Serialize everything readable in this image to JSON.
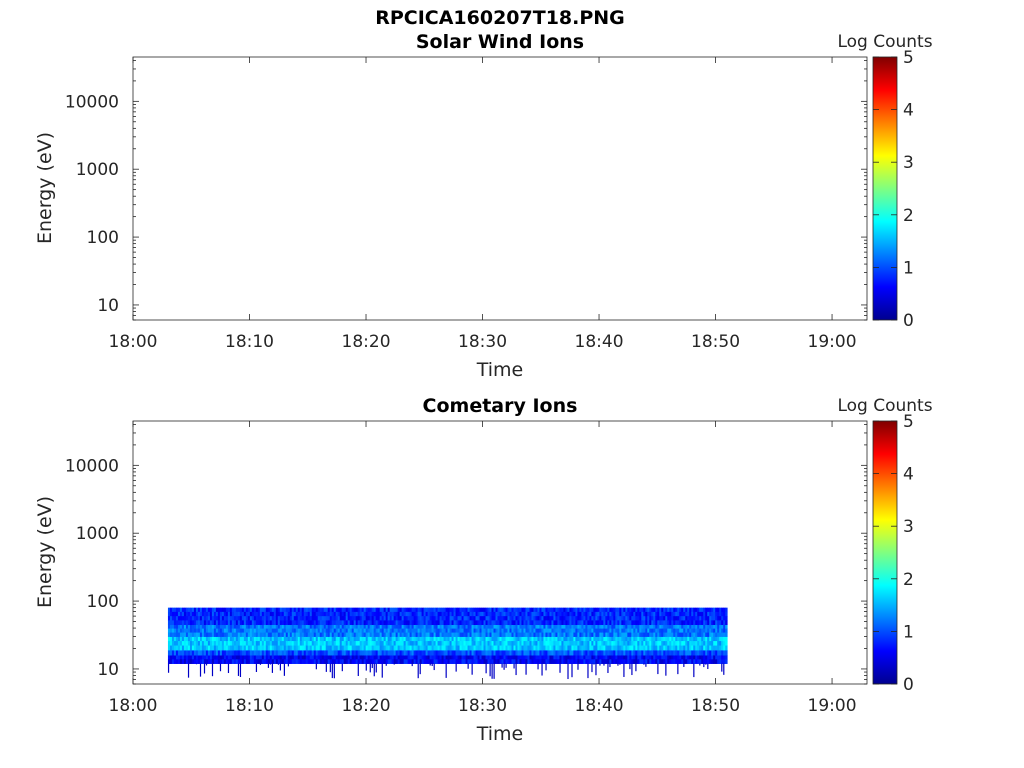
{
  "figure": {
    "title": "RPCICA160207T18.PNG",
    "colormap": [
      "#00008f",
      "#0000ff",
      "#0080ff",
      "#00ffff",
      "#80ff80",
      "#ffff00",
      "#ff8000",
      "#ff0000",
      "#800000"
    ]
  },
  "chart_data": [
    {
      "type": "heatmap",
      "title": "Solar Wind Ions",
      "xlabel": "Time",
      "ylabel": "Energy (eV)",
      "yscale": "log",
      "xlim": [
        "18:00",
        "19:03"
      ],
      "ylim": [
        6,
        45000
      ],
      "xticks": [
        "18:00",
        "18:10",
        "18:20",
        "18:30",
        "18:40",
        "18:50",
        "19:00"
      ],
      "yticks": [
        "10",
        "100",
        "1000",
        "10000"
      ],
      "colorbar": {
        "label": "Log Counts",
        "range": [
          0,
          5
        ],
        "ticks": [
          "0",
          "1",
          "2",
          "3",
          "4",
          "5"
        ]
      },
      "data": []
    },
    {
      "type": "heatmap",
      "title": "Cometary Ions",
      "xlabel": "Time",
      "ylabel": "Energy (eV)",
      "yscale": "log",
      "xlim": [
        "18:00",
        "19:03"
      ],
      "ylim": [
        6,
        45000
      ],
      "xticks": [
        "18:00",
        "18:10",
        "18:20",
        "18:30",
        "18:40",
        "18:50",
        "19:00"
      ],
      "yticks": [
        "10",
        "100",
        "1000",
        "10000"
      ],
      "colorbar": {
        "label": "Log Counts",
        "range": [
          0,
          5
        ],
        "ticks": [
          "0",
          "1",
          "2",
          "3",
          "4",
          "5"
        ]
      },
      "data": {
        "time_start": "18:03",
        "time_end": "18:51",
        "energy_min": 12,
        "energy_max": 80,
        "energy_bands": [
          {
            "energy": [
              12,
              16
            ],
            "log_counts": 0.6
          },
          {
            "energy": [
              16,
              19
            ],
            "log_counts": 1.0
          },
          {
            "energy": [
              19,
              30
            ],
            "log_counts": 1.6
          },
          {
            "energy": [
              30,
              45
            ],
            "log_counts": 1.2
          },
          {
            "energy": [
              45,
              80
            ],
            "log_counts": 0.8
          }
        ],
        "low_energy_spikes_min": 7
      }
    }
  ]
}
